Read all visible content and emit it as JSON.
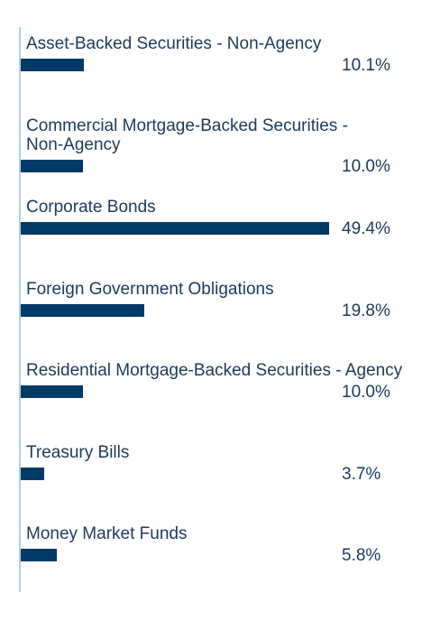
{
  "chart_data": {
    "type": "bar",
    "orientation": "horizontal",
    "categories": [
      [
        "Asset-Backed Securities - Non-Agency"
      ],
      [
        "Commercial Mortgage-Backed Securities -",
        "Non-Agency"
      ],
      [
        "Corporate Bonds"
      ],
      [
        "Foreign Government Obligations"
      ],
      [
        "Residential Mortgage-Backed Securities - Agency"
      ],
      [
        "Treasury Bills"
      ],
      [
        "Money Market Funds"
      ]
    ],
    "values": [
      10.1,
      10.0,
      49.4,
      19.8,
      10.0,
      3.7,
      5.8
    ],
    "value_labels": [
      "10.1%",
      "10.0%",
      "49.4%",
      "19.8%",
      "10.0%",
      "3.7%",
      "5.8%"
    ],
    "unit": "%",
    "title": "",
    "xlabel": "",
    "ylabel": "",
    "xlim": [
      0,
      50
    ],
    "grid": false,
    "legend": "none",
    "bar_color": "#003a66",
    "axis_color": "#a9d3e3",
    "text_color": "#1b3a5b"
  }
}
